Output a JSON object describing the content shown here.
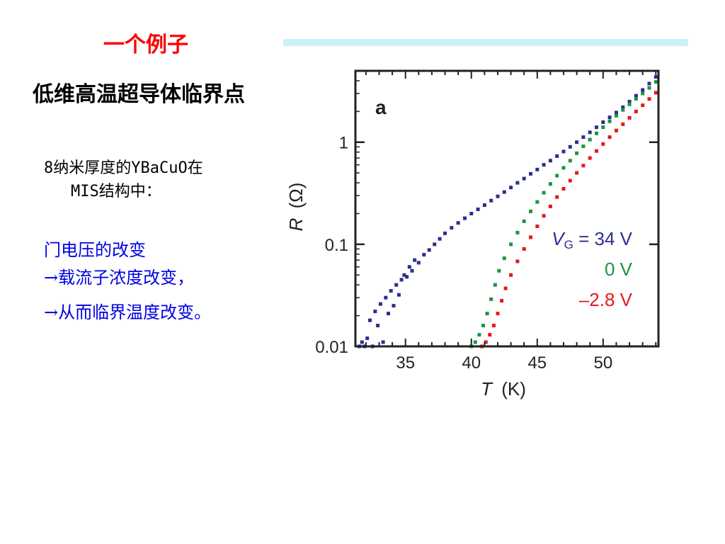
{
  "slide": {
    "title": "一个例子",
    "subtitle": "低维高温超导体临界点",
    "description": [
      "8纳米厚度的YBaCuO在",
      "MIS结构中："
    ],
    "bullets": [
      "门电压的改变",
      "→载流子浓度改变，",
      "→从而临界温度改变。"
    ]
  },
  "chart_data": {
    "type": "scatter",
    "panel_label": "a",
    "xlabel_var": "T",
    "xlabel_unit": "(K)",
    "ylabel_var": "R",
    "ylabel_unit": "(Ω)",
    "xlim": [
      31.2,
      54.2
    ],
    "ylim": [
      0.01,
      5
    ],
    "yscale": "log",
    "x_ticks": [
      35,
      40,
      45,
      50
    ],
    "y_ticks": [
      0.01,
      0.1,
      1
    ],
    "y_tick_labels": [
      "0.01",
      "0.1",
      "1"
    ],
    "series": [
      {
        "name": "VG = 34 V",
        "label_var": "V",
        "label_sub": "G",
        "label_rest": " = 34 V",
        "color": "#2b2f8f",
        "x": [
          31.5,
          31.7,
          31.9,
          32.1,
          32.3,
          32.5,
          32.7,
          32.9,
          33.1,
          33.3,
          33.5,
          33.7,
          33.9,
          34.1,
          34.3,
          34.5,
          34.7,
          34.9,
          35.1,
          35.3,
          35.5,
          35.7,
          36.0,
          36.4,
          36.8,
          37.2,
          37.6,
          38.0,
          38.5,
          39.0,
          39.5,
          40.0,
          40.5,
          41.0,
          41.5,
          42.0,
          42.5,
          43.0,
          43.5,
          44.0,
          44.5,
          45.0,
          45.5,
          46.0,
          46.5,
          47.0,
          47.5,
          48.0,
          48.5,
          49.0,
          49.5,
          50.0,
          50.5,
          51.0,
          51.5,
          52.0,
          52.5,
          53.0,
          53.5,
          54.0
        ],
        "y": [
          0.01,
          0.011,
          0.01,
          0.012,
          0.018,
          0.01,
          0.022,
          0.016,
          0.026,
          0.011,
          0.03,
          0.021,
          0.035,
          0.025,
          0.04,
          0.032,
          0.045,
          0.05,
          0.048,
          0.06,
          0.055,
          0.07,
          0.066,
          0.079,
          0.088,
          0.1,
          0.113,
          0.128,
          0.145,
          0.162,
          0.18,
          0.2,
          0.22,
          0.242,
          0.268,
          0.295,
          0.325,
          0.36,
          0.4,
          0.44,
          0.49,
          0.54,
          0.6,
          0.66,
          0.73,
          0.81,
          0.9,
          1.0,
          1.12,
          1.25,
          1.4,
          1.57,
          1.75,
          1.95,
          2.2,
          2.5,
          2.85,
          3.25,
          3.75,
          4.35
        ]
      },
      {
        "name": "0 V",
        "label_rest": "0 V",
        "color": "#1a9641",
        "x": [
          40.0,
          40.3,
          40.6,
          40.9,
          41.2,
          41.5,
          41.8,
          42.1,
          42.5,
          43.0,
          43.5,
          44.0,
          44.5,
          45.0,
          45.5,
          46.0,
          46.5,
          47.0,
          47.5,
          48.0,
          48.5,
          49.0,
          49.5,
          50.0,
          50.5,
          51.0,
          51.5,
          52.0,
          52.5,
          53.0,
          53.5,
          54.0
        ],
        "y": [
          0.01,
          0.011,
          0.013,
          0.016,
          0.021,
          0.029,
          0.04,
          0.055,
          0.073,
          0.1,
          0.13,
          0.168,
          0.21,
          0.26,
          0.32,
          0.39,
          0.47,
          0.56,
          0.66,
          0.78,
          0.91,
          1.06,
          1.22,
          1.4,
          1.6,
          1.82,
          2.07,
          2.35,
          2.66,
          3.0,
          3.4,
          3.9
        ]
      },
      {
        "name": "–2.8 V",
        "label_rest": "–2.8 V",
        "color": "#e31a1c",
        "x": [
          40.8,
          41.1,
          41.4,
          41.7,
          42.0,
          42.3,
          42.6,
          43.0,
          43.5,
          44.0,
          44.5,
          45.0,
          45.5,
          46.0,
          46.5,
          47.0,
          47.5,
          48.0,
          48.5,
          49.0,
          49.5,
          50.0,
          50.5,
          51.0,
          51.5,
          52.0,
          52.5,
          53.0,
          53.5,
          54.0
        ],
        "y": [
          0.01,
          0.011,
          0.013,
          0.016,
          0.021,
          0.028,
          0.037,
          0.05,
          0.068,
          0.09,
          0.117,
          0.15,
          0.19,
          0.235,
          0.29,
          0.35,
          0.42,
          0.5,
          0.59,
          0.7,
          0.82,
          0.96,
          1.12,
          1.3,
          1.5,
          1.73,
          2.0,
          2.3,
          2.65,
          3.05
        ]
      }
    ]
  }
}
